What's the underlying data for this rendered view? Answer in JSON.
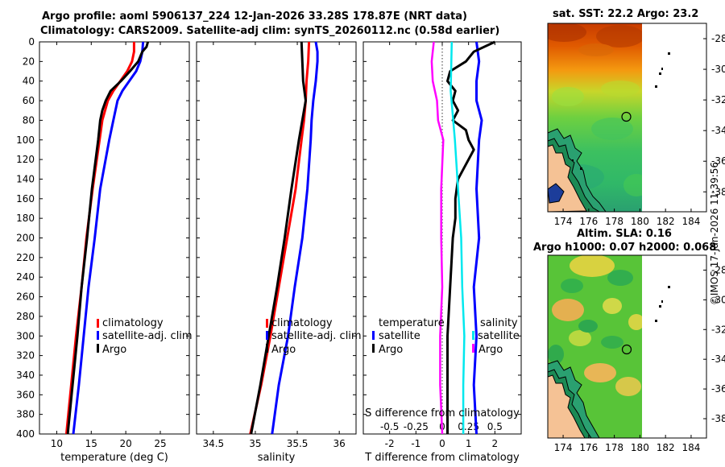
{
  "titles": {
    "line1": "Argo profile: aoml 5906137_224 12-Jan-2026 33.28S 178.87E (NRT data)",
    "line2": "Climatology: CARS2009. Satellite-adj clim: synTS_20260112.nc (0.58d earlier)",
    "sst": "sat. SST: 22.2 Argo: 23.2",
    "sla1": "Altim. SLA: 0.16",
    "sla2": "Argo h1000: 0.07 h2000: 0.068",
    "stamp": "©IMOS 17-Jan-2026 11:39:56"
  },
  "colors": {
    "climatology": "#ff0000",
    "satellite": "#0000ff",
    "argo": "#000000",
    "temp_diff": "#ff00ff",
    "sal_diff": "#00e8ee",
    "land": "#f5c295"
  },
  "chart_data": [
    {
      "type": "line",
      "title": "",
      "xlabel": "temperature (deg C)",
      "ylabel": "",
      "xlim": [
        7.5,
        29.2
      ],
      "ylim": [
        400,
        0
      ],
      "x_ticks": [
        10,
        15,
        20,
        25
      ],
      "y_ticks": [
        0,
        20,
        40,
        60,
        80,
        100,
        120,
        140,
        160,
        180,
        200,
        220,
        240,
        260,
        280,
        300,
        320,
        340,
        360,
        380,
        400
      ],
      "legend": [
        "climatology",
        "satellite-adj. clim",
        "Argo"
      ],
      "legend_position": "center-right",
      "series": [
        {
          "name": "climatology",
          "color": "#ff0000",
          "depth": [
            0,
            10,
            20,
            30,
            40,
            50,
            60,
            80,
            100,
            150,
            200,
            250,
            300,
            350,
            400
          ],
          "values": [
            21.2,
            21.2,
            20.9,
            20.2,
            19.2,
            18.2,
            17.4,
            16.6,
            16.2,
            15.2,
            14.3,
            13.6,
            12.8,
            12.1,
            11.4
          ]
        },
        {
          "name": "satellite-adj. clim",
          "color": "#0000ff",
          "depth": [
            0,
            10,
            20,
            30,
            40,
            50,
            60,
            80,
            100,
            150,
            200,
            250,
            300,
            350,
            400
          ],
          "values": [
            22.5,
            22.4,
            22.1,
            21.5,
            20.5,
            19.5,
            18.8,
            18.2,
            17.6,
            16.3,
            15.5,
            14.6,
            13.9,
            13.2,
            12.4
          ]
        },
        {
          "name": "Argo",
          "color": "#000000",
          "depth": [
            0,
            5,
            10,
            20,
            30,
            40,
            50,
            60,
            70,
            80,
            100,
            150,
            200,
            250,
            300,
            350,
            400
          ],
          "values": [
            23.2,
            23.0,
            22.4,
            21.8,
            20.6,
            19.3,
            17.8,
            17.1,
            16.6,
            16.3,
            16.0,
            15.1,
            14.4,
            13.6,
            13.0,
            12.3,
            11.6
          ]
        }
      ]
    },
    {
      "type": "line",
      "title": "",
      "xlabel": "salinity",
      "ylabel": "",
      "xlim": [
        34.3,
        36.2
      ],
      "ylim": [
        400,
        0
      ],
      "x_ticks": [
        34.5,
        35,
        35.5,
        36
      ],
      "y_ticks": [
        0,
        20,
        40,
        60,
        80,
        100,
        120,
        140,
        160,
        180,
        200,
        220,
        240,
        260,
        280,
        300,
        320,
        340,
        360,
        380,
        400
      ],
      "legend": [
        "climatology",
        "satellite-adj. clim",
        "Argo"
      ],
      "legend_position": "center-right",
      "series": [
        {
          "name": "climatology",
          "color": "#ff0000",
          "depth": [
            0,
            20,
            40,
            60,
            80,
            100,
            150,
            200,
            250,
            300,
            350,
            400
          ],
          "values": [
            35.64,
            35.63,
            35.61,
            35.6,
            35.58,
            35.55,
            35.48,
            35.38,
            35.28,
            35.18,
            35.07,
            34.94
          ]
        },
        {
          "name": "satellite-adj. clim",
          "color": "#0000ff",
          "depth": [
            0,
            10,
            20,
            40,
            60,
            80,
            100,
            150,
            200,
            250,
            300,
            350,
            400
          ],
          "values": [
            35.72,
            35.74,
            35.74,
            35.72,
            35.69,
            35.67,
            35.66,
            35.62,
            35.56,
            35.47,
            35.39,
            35.28,
            35.2
          ]
        },
        {
          "name": "Argo",
          "color": "#000000",
          "depth": [
            0,
            20,
            40,
            60,
            80,
            100,
            150,
            200,
            250,
            300,
            350,
            400
          ],
          "values": [
            35.55,
            35.56,
            35.57,
            35.6,
            35.56,
            35.52,
            35.43,
            35.35,
            35.26,
            35.16,
            35.06,
            34.95
          ]
        }
      ]
    },
    {
      "type": "line",
      "title": "",
      "xlabel": "T difference from climatology",
      "ylabel": "",
      "top_xlabel": "S difference from climatology",
      "xlim": [
        -3.0,
        3.0
      ],
      "ylim": [
        400,
        0
      ],
      "x_ticks": [
        -2,
        -1,
        0,
        1,
        2
      ],
      "top_x_ticks": [
        "-0.5",
        "-0.25",
        "0",
        "0.25",
        "0.5"
      ],
      "y_ticks": [
        0,
        20,
        40,
        60,
        80,
        100,
        120,
        140,
        160,
        180,
        200,
        220,
        240,
        260,
        280,
        300,
        320,
        340,
        360,
        380,
        400
      ],
      "legend_left": [
        "temperature",
        "satellite",
        "Argo"
      ],
      "legend_right": [
        "salinity",
        "satellite",
        "Argo"
      ],
      "legend_position": "center",
      "series": [
        {
          "name": "temperature satellite",
          "color": "#0000ff",
          "depth": [
            0,
            20,
            40,
            60,
            80,
            100,
            150,
            200,
            250,
            300,
            350,
            400
          ],
          "values": [
            1.3,
            1.4,
            1.3,
            1.3,
            1.5,
            1.4,
            1.3,
            1.4,
            1.2,
            1.3,
            1.2,
            1.3
          ]
        },
        {
          "name": "temperature Argo",
          "color": "#000000",
          "depth": [
            0,
            10,
            20,
            30,
            40,
            50,
            60,
            70,
            80,
            90,
            100,
            110,
            120,
            130,
            140,
            160,
            180,
            200,
            250,
            300,
            350,
            400
          ],
          "values": [
            2.0,
            1.2,
            0.9,
            0.3,
            0.2,
            0.5,
            0.4,
            0.6,
            0.4,
            0.9,
            1.0,
            1.2,
            1.0,
            0.8,
            0.6,
            0.5,
            0.5,
            0.4,
            0.3,
            0.2,
            0.2,
            0.2
          ]
        },
        {
          "name": "salinity satellite",
          "color": "#00e8ee",
          "depth": [
            0,
            50,
            100,
            150,
            200,
            250,
            300,
            350,
            400
          ],
          "values": [
            0.09,
            0.08,
            0.12,
            0.15,
            0.18,
            0.19,
            0.21,
            0.2,
            0.2
          ]
        },
        {
          "name": "salinity Argo",
          "color": "#ff00ff",
          "depth": [
            0,
            20,
            40,
            60,
            80,
            100,
            150,
            200,
            250,
            300,
            350,
            400
          ],
          "values": [
            -0.08,
            -0.1,
            -0.09,
            -0.05,
            -0.04,
            0.01,
            -0.01,
            -0.01,
            0.0,
            -0.02,
            -0.02,
            0.0
          ]
        }
      ]
    },
    {
      "type": "heatmap",
      "title": "sat. SST: 22.2 Argo: 23.2",
      "xlim": [
        172.8,
        185.2
      ],
      "ylim": [
        -39.3,
        -27.0
      ],
      "x_ticks": [
        174,
        176,
        178,
        180,
        182,
        184
      ],
      "y_ticks": [
        -28,
        -30,
        -32,
        -34,
        -36,
        -38
      ],
      "argo_position": [
        178.87,
        -33.28
      ]
    },
    {
      "type": "heatmap",
      "title": "Altim. SLA: 0.16",
      "xlim": [
        172.8,
        185.2
      ],
      "ylim": [
        -39.3,
        -27.0
      ],
      "x_ticks": [
        174,
        176,
        178,
        180,
        182,
        184
      ],
      "y_ticks": [
        -28,
        -30,
        -32,
        -34,
        -36,
        -38
      ],
      "argo_position": [
        178.87,
        -33.28
      ]
    }
  ]
}
